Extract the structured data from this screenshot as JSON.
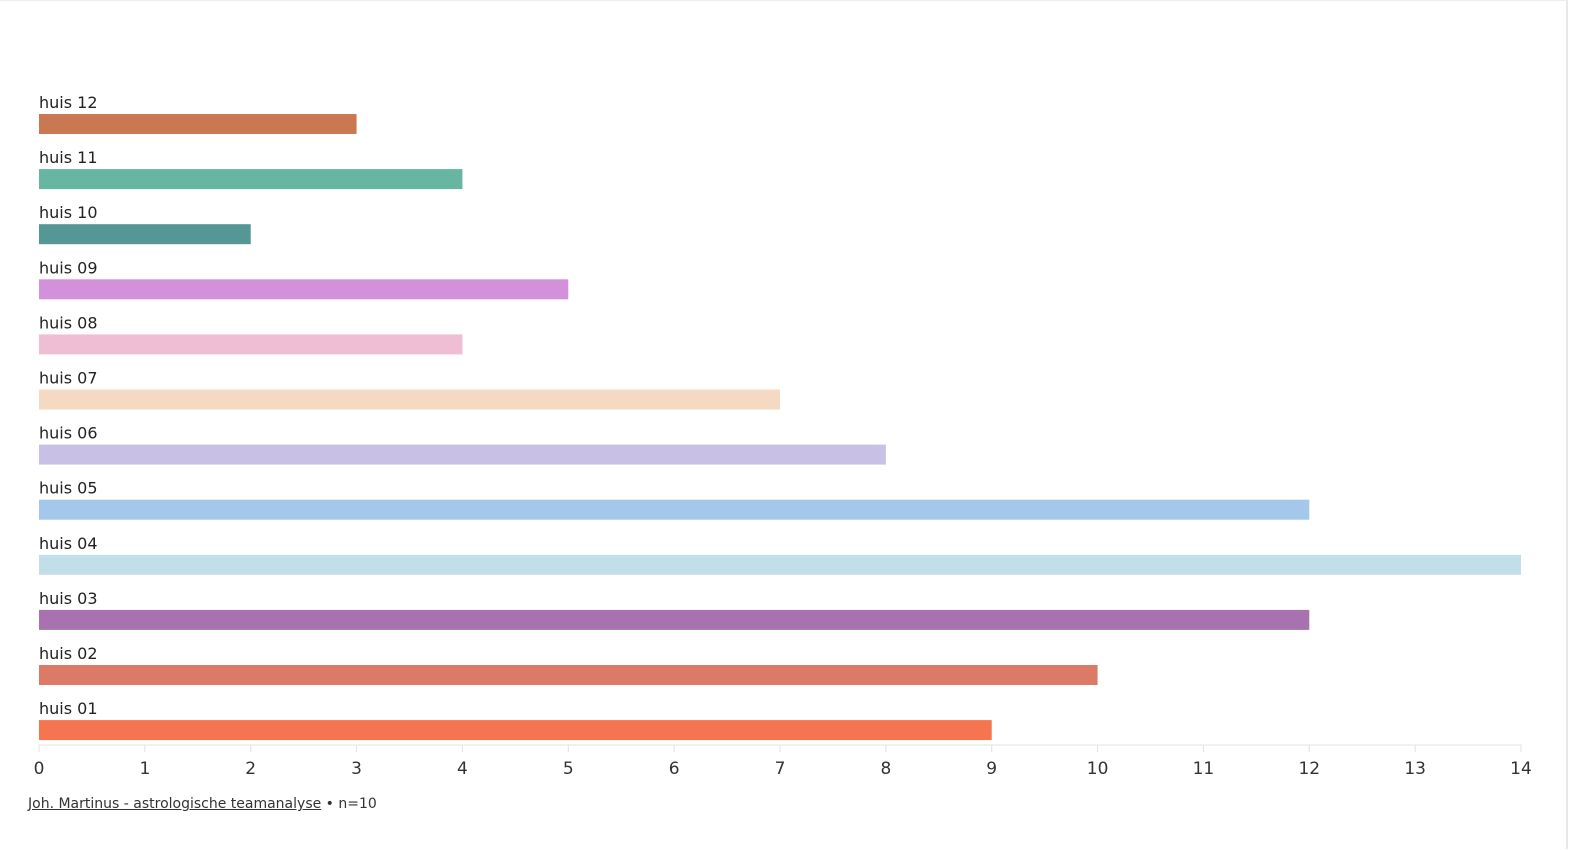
{
  "chart_data": {
    "type": "bar",
    "orientation": "horizontal",
    "categories": [
      "huis 12",
      "huis 11",
      "huis 10",
      "huis 09",
      "huis 08",
      "huis 07",
      "huis 06",
      "huis 05",
      "huis 04",
      "huis 03",
      "huis 02",
      "huis 01"
    ],
    "values": [
      3,
      4,
      2,
      5,
      4,
      7,
      8,
      12,
      14,
      12,
      10,
      9
    ],
    "colors": [
      "#c97852",
      "#66b6a1",
      "#559696",
      "#d391dc",
      "#efbdd4",
      "#f6d9c3",
      "#c9c1e5",
      "#a3c8ec",
      "#c2dee9",
      "#a872b1",
      "#dc7a67",
      "#f47550"
    ],
    "xlim": [
      0,
      14
    ],
    "xticks": [
      "0",
      "1",
      "2",
      "3",
      "4",
      "5",
      "6",
      "7",
      "8",
      "9",
      "10",
      "11",
      "12",
      "13",
      "14"
    ],
    "grid": false,
    "legend": "none"
  },
  "footer": {
    "source_link": "Joh. Martinus - astrologische teamanalyse",
    "note": " • n=10"
  }
}
